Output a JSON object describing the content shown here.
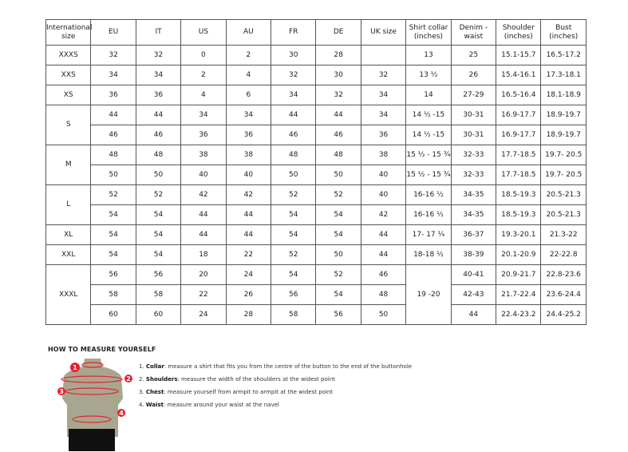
{
  "table": {
    "headers": [
      "International size",
      "EU",
      "IT",
      "US",
      "AU",
      "FR",
      "DE",
      "UK size",
      "Shirt collar (inches)",
      "Denim - waist",
      "Shoulder (inches)",
      "Bust (inches)"
    ],
    "groups": [
      {
        "size": "XXXS",
        "rows": [
          [
            "32",
            "32",
            "0",
            "2",
            "30",
            "28",
            "",
            "13",
            "25",
            "15.1-15.7",
            "16.5-17.2"
          ]
        ]
      },
      {
        "size": "XXS",
        "rows": [
          [
            "34",
            "34",
            "2",
            "4",
            "32",
            "30",
            "32",
            "13 ½",
            "26",
            "15.4-16.1",
            "17.3-18.1"
          ]
        ]
      },
      {
        "size": "XS",
        "rows": [
          [
            "36",
            "36",
            "4",
            "6",
            "34",
            "32",
            "34",
            "14",
            "27-29",
            "16.5-16.4",
            "18.1-18.9"
          ]
        ]
      },
      {
        "size": "S",
        "rows": [
          [
            "44",
            "44",
            "34",
            "34",
            "44",
            "44",
            "34",
            "14 ½ -15",
            "30-31",
            "16.9-17.7",
            "18.9-19.7"
          ],
          [
            "46",
            "46",
            "36",
            "36",
            "46",
            "46",
            "36",
            "14 ½ -15",
            "30-31",
            "16.9-17.7",
            "18.9-19.7"
          ]
        ]
      },
      {
        "size": "M",
        "rows": [
          [
            "48",
            "48",
            "38",
            "38",
            "48",
            "48",
            "38",
            "15 ½ - 15 ¾",
            "32-33",
            "17.7-18.5",
            "19.7- 20.5"
          ],
          [
            "50",
            "50",
            "40",
            "40",
            "50",
            "50",
            "40",
            "15 ½ - 15 ¾",
            "32-33",
            "17.7-18.5",
            "19.7- 20.5"
          ]
        ]
      },
      {
        "size": "L",
        "rows": [
          [
            "52",
            "52",
            "42",
            "42",
            "52",
            "52",
            "40",
            "16-16 ½",
            "34-35",
            "18.5-19.3",
            "20.5-21.3"
          ],
          [
            "54",
            "54",
            "44",
            "44",
            "54",
            "54",
            "42",
            "16-16 ½",
            "34-35",
            "18.5-19.3",
            "20.5-21.3"
          ]
        ]
      },
      {
        "size": "XL",
        "rows": [
          [
            "54",
            "54",
            "44",
            "44",
            "54",
            "54",
            "44",
            "17- 17 ¼",
            "36-37",
            "19.3-20.1",
            "21.3-22"
          ]
        ]
      },
      {
        "size": "XXL",
        "rows": [
          [
            "54",
            "54",
            "18",
            "22",
            "52",
            "50",
            "44",
            "18-18 ½",
            "38-39",
            "20.1-20.9",
            "22-22.8"
          ]
        ]
      },
      {
        "size": "XXXL",
        "rows": [
          [
            "56",
            "56",
            "20",
            "24",
            "54",
            "52",
            "46",
            "19 -20",
            "40-41",
            "20.9-21.7",
            "22.8-23.6"
          ],
          [
            "58",
            "58",
            "22",
            "26",
            "56",
            "54",
            "48",
            null,
            "42-43",
            "21.7-22.4",
            "23.6-24.4"
          ],
          [
            "60",
            "60",
            "24",
            "28",
            "58",
            "56",
            "50",
            null,
            "44",
            "22.4-23.2",
            "24.4-25.2"
          ]
        ]
      }
    ]
  },
  "measure": {
    "title": "HOW TO MEASURE YOURSELF",
    "steps": [
      {
        "num": "1.",
        "term": "Collar",
        "text": ": measure a shirt that fits you from the centre of the button to the end of the buttonhole"
      },
      {
        "num": "2.",
        "term": "Shoulders",
        "text": ": measure the width of the shoulders at the widest point"
      },
      {
        "num": "3.",
        "term": "Chest",
        "text": ": measure yourself from armpit to armpit at the widest point"
      },
      {
        "num": "4.",
        "term": "Waist",
        "text": ": measure around your waist at the navel"
      }
    ],
    "markers": [
      "1",
      "2",
      "3",
      "4"
    ],
    "colors": {
      "marker": "#e3222e",
      "torso": "#a9a690",
      "shorts": "#111111"
    }
  }
}
